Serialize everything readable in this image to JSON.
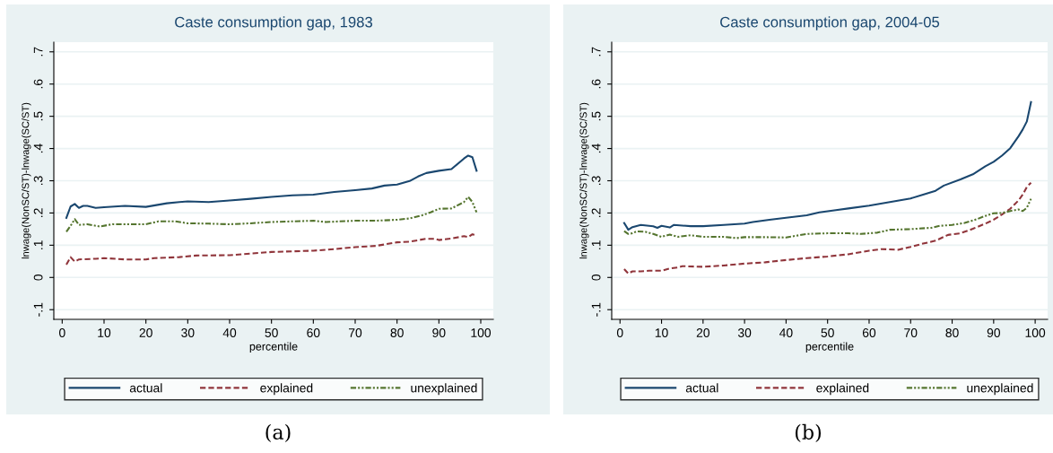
{
  "chart_data": [
    {
      "type": "line",
      "title": "Caste consumption gap, 1983",
      "xlabel": "percentile",
      "ylabel": "lnwage(NonSC/ST)-lnwage(SC/ST)",
      "xlim": [
        -2,
        103
      ],
      "ylim": [
        -0.13,
        0.73
      ],
      "xticks": [
        0,
        10,
        20,
        30,
        40,
        50,
        60,
        70,
        80,
        90,
        100
      ],
      "yticks": [
        {
          "value": -0.1,
          "label": "-.1"
        },
        0,
        {
          "value": 0.1,
          "label": ".1"
        },
        {
          "value": 0.2,
          "label": ".2"
        },
        {
          "value": 0.3,
          "label": ".3"
        },
        {
          "value": 0.4,
          "label": ".4"
        },
        {
          "value": 0.5,
          "label": ".5"
        },
        {
          "value": 0.6,
          "label": ".6"
        },
        {
          "value": 0.7,
          "label": ".7"
        }
      ],
      "grid": "y",
      "legend": "bottom",
      "annotations": [
        "(a)"
      ],
      "series": [
        {
          "name": "actual",
          "color": "#1a476f",
          "line_style": "solid",
          "x": [
            1,
            2,
            3,
            4,
            5,
            6,
            8,
            10,
            15,
            20,
            25,
            28,
            30,
            35,
            40,
            45,
            50,
            55,
            60,
            65,
            70,
            74,
            77,
            80,
            83,
            85,
            87,
            90,
            93,
            96,
            97,
            98,
            99
          ],
          "values": [
            0.185,
            0.22,
            0.228,
            0.216,
            0.222,
            0.222,
            0.216,
            0.218,
            0.222,
            0.219,
            0.23,
            0.234,
            0.236,
            0.234,
            0.239,
            0.244,
            0.25,
            0.255,
            0.257,
            0.265,
            0.271,
            0.276,
            0.285,
            0.288,
            0.299,
            0.313,
            0.324,
            0.331,
            0.336,
            0.369,
            0.378,
            0.373,
            0.331
          ]
        },
        {
          "name": "explained",
          "color": "#90353b",
          "line_style": "dashed",
          "x": [
            1,
            2,
            3,
            4,
            8,
            10,
            15,
            20,
            22,
            28,
            32,
            40,
            45,
            50,
            55,
            60,
            65,
            70,
            75,
            80,
            83,
            87,
            89,
            90,
            93,
            96,
            97,
            98,
            99
          ],
          "values": [
            0.04,
            0.063,
            0.049,
            0.056,
            0.058,
            0.06,
            0.056,
            0.056,
            0.06,
            0.063,
            0.068,
            0.069,
            0.074,
            0.079,
            0.081,
            0.083,
            0.088,
            0.094,
            0.098,
            0.109,
            0.111,
            0.12,
            0.12,
            0.116,
            0.121,
            0.128,
            0.125,
            0.134,
            0.131
          ]
        },
        {
          "name": "unexplained",
          "color": "#55752f",
          "line_style": "dashdotdot",
          "x": [
            1,
            2,
            3,
            4,
            6,
            9,
            12,
            17,
            20,
            23,
            27,
            30,
            35,
            40,
            45,
            50,
            55,
            60,
            63,
            70,
            75,
            80,
            83,
            86,
            88,
            90,
            93,
            96,
            97,
            98,
            99
          ],
          "values": [
            0.142,
            0.16,
            0.181,
            0.163,
            0.165,
            0.158,
            0.165,
            0.165,
            0.165,
            0.174,
            0.174,
            0.168,
            0.167,
            0.165,
            0.168,
            0.172,
            0.174,
            0.176,
            0.172,
            0.176,
            0.176,
            0.179,
            0.183,
            0.193,
            0.202,
            0.213,
            0.214,
            0.234,
            0.25,
            0.234,
            0.202
          ]
        }
      ]
    },
    {
      "type": "line",
      "title": "Caste consumption gap, 2004-05",
      "xlabel": "percentile",
      "ylabel": "lnwage(NonSC/ST)-lnwage(SC/ST)",
      "xlim": [
        -2,
        103
      ],
      "ylim": [
        -0.13,
        0.73
      ],
      "xticks": [
        0,
        10,
        20,
        30,
        40,
        50,
        60,
        70,
        80,
        90,
        100
      ],
      "yticks": [
        {
          "value": -0.1,
          "label": "-.1"
        },
        0,
        {
          "value": 0.1,
          "label": ".1"
        },
        {
          "value": 0.2,
          "label": ".2"
        },
        {
          "value": 0.3,
          "label": ".3"
        },
        {
          "value": 0.4,
          "label": ".4"
        },
        {
          "value": 0.5,
          "label": ".5"
        },
        {
          "value": 0.6,
          "label": ".6"
        },
        {
          "value": 0.7,
          "label": ".7"
        }
      ],
      "grid": "y",
      "legend": "bottom",
      "annotations": [
        "(b)"
      ],
      "series": [
        {
          "name": "actual",
          "color": "#1a476f",
          "line_style": "solid",
          "x": [
            1,
            2,
            3,
            5,
            8,
            9,
            10,
            12,
            13,
            17,
            20,
            25,
            30,
            32,
            36,
            40,
            45,
            48,
            52,
            55,
            60,
            65,
            70,
            73,
            76,
            78,
            82,
            85,
            88,
            90,
            92,
            94,
            96,
            97,
            98,
            99
          ],
          "values": [
            0.169,
            0.148,
            0.156,
            0.163,
            0.159,
            0.154,
            0.16,
            0.155,
            0.163,
            0.159,
            0.159,
            0.163,
            0.167,
            0.172,
            0.179,
            0.185,
            0.193,
            0.202,
            0.209,
            0.214,
            0.223,
            0.234,
            0.245,
            0.257,
            0.269,
            0.285,
            0.304,
            0.32,
            0.345,
            0.359,
            0.378,
            0.401,
            0.438,
            0.459,
            0.484,
            0.544
          ]
        },
        {
          "name": "explained",
          "color": "#90353b",
          "line_style": "dashed",
          "x": [
            1,
            2,
            3,
            5,
            7,
            10,
            12,
            14,
            15,
            20,
            25,
            30,
            35,
            40,
            45,
            50,
            55,
            60,
            63,
            67,
            70,
            73,
            76,
            79,
            82,
            85,
            88,
            90,
            92,
            94,
            96,
            97,
            98,
            99
          ],
          "values": [
            0.026,
            0.012,
            0.019,
            0.019,
            0.021,
            0.021,
            0.028,
            0.031,
            0.035,
            0.033,
            0.037,
            0.043,
            0.047,
            0.054,
            0.06,
            0.065,
            0.072,
            0.083,
            0.088,
            0.086,
            0.095,
            0.105,
            0.114,
            0.132,
            0.137,
            0.151,
            0.167,
            0.179,
            0.195,
            0.213,
            0.239,
            0.257,
            0.281,
            0.294
          ]
        },
        {
          "name": "unexplained",
          "color": "#55752f",
          "line_style": "dashdotdot",
          "x": [
            1,
            2,
            3,
            4,
            6,
            8,
            10,
            12,
            14,
            17,
            20,
            25,
            28,
            30,
            35,
            40,
            45,
            50,
            55,
            58,
            62,
            65,
            70,
            75,
            77,
            80,
            83,
            86,
            88,
            90,
            92,
            94,
            96,
            97,
            98,
            99
          ],
          "values": [
            0.144,
            0.135,
            0.137,
            0.143,
            0.142,
            0.135,
            0.126,
            0.133,
            0.126,
            0.131,
            0.126,
            0.126,
            0.122,
            0.125,
            0.125,
            0.124,
            0.135,
            0.137,
            0.137,
            0.135,
            0.139,
            0.148,
            0.15,
            0.154,
            0.16,
            0.163,
            0.169,
            0.181,
            0.191,
            0.199,
            0.2,
            0.206,
            0.211,
            0.206,
            0.216,
            0.244
          ]
        }
      ]
    }
  ]
}
